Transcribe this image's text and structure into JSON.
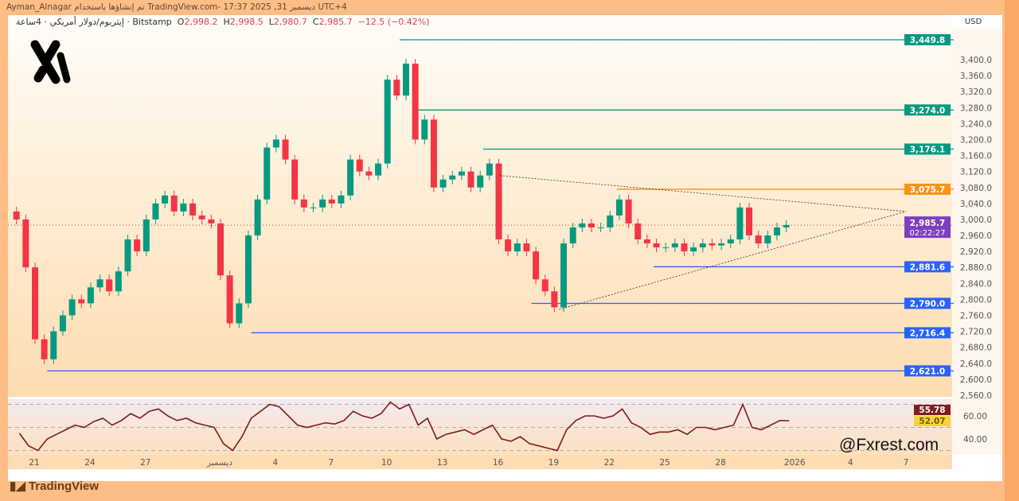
{
  "header": {
    "top_line": "Ayman_Alnagar تم إنشاؤها باستخدام TradingView.com- 17:37 2025 ,31 ديسمبر UTC+4",
    "symbol": "إيثريوم/دولار أمريكي · 4ساعة · Bitstamp",
    "open_label": "O",
    "open": "2,998.2",
    "high_label": "H",
    "high": "2,998.5",
    "low_label": "L",
    "low": "2,980.7",
    "close_label": "C",
    "close": "2,985.7",
    "change": "−12.5 (−0.42%)"
  },
  "currency": "USD",
  "branding": {
    "tradingview": "TradingView",
    "watermark": "@Fxrest.com",
    "logo_icon": "x-logo-icon"
  },
  "colors": {
    "up": "#089981",
    "down": "#f23645",
    "teal_level": "#089981",
    "orange_level": "#f7931a",
    "blue_level": "#2962ff",
    "rsi": "#7f1d1d",
    "last_price": "#7e3fbf"
  },
  "chart_data": [
    {
      "type": "candlestick",
      "timeframe": "4h",
      "price_ticks": [
        "3,400.0",
        "3,360.0",
        "3,320.0",
        "3,280.0",
        "3,240.0",
        "3,200.0",
        "3,160.0",
        "3,120.0",
        "3,080.0",
        "3,040.0",
        "3,000.0",
        "2,960.0",
        "2,920.0",
        "2,880.0",
        "2,840.0",
        "2,800.0",
        "2,760.0",
        "2,720.0",
        "2,680.0",
        "2,640.0",
        "2,600.0",
        "2,560.0"
      ],
      "ylim": [
        2540,
        3470
      ],
      "x_ticks": [
        "21",
        "24",
        "27",
        "ديسمبر",
        "4",
        "7",
        "10",
        "13",
        "16",
        "19",
        "22",
        "25",
        "28",
        "2026",
        "4",
        "7"
      ],
      "x_tick_days": [
        21,
        24,
        27,
        31,
        34,
        37,
        40,
        43,
        46,
        49,
        52,
        55,
        58,
        62,
        65,
        68
      ],
      "closes_per_half_day": [
        3000,
        2880,
        2700,
        2650,
        2720,
        2760,
        2800,
        2790,
        2830,
        2850,
        2820,
        2870,
        2950,
        2920,
        3000,
        3040,
        3060,
        3020,
        3040,
        3010,
        3000,
        2990,
        2860,
        2740,
        2790,
        2960,
        3050,
        3180,
        3200,
        3150,
        3050,
        3030,
        3030,
        3050,
        3040,
        3060,
        3150,
        3120,
        3110,
        3140,
        3350,
        3310,
        3390,
        3200,
        3250,
        3080,
        3100,
        3110,
        3120,
        3080,
        3110,
        3140,
        2950,
        2920,
        2940,
        2920,
        2850,
        2820,
        2780,
        2940,
        2980,
        2990,
        2980,
        2980,
        3010,
        3050,
        2990,
        2950,
        2940,
        2930,
        2930,
        2940,
        2920,
        2930,
        2940,
        2935,
        2940,
        2950,
        3030,
        2960,
        2940,
        2960,
        2980,
        2986
      ],
      "levels": [
        {
          "price": 3449.8,
          "label": "3,449.8",
          "color": "teal",
          "from_day": 40.7
        },
        {
          "price": 3274.0,
          "label": "3,274.0",
          "color": "teal",
          "from_day": 41.7
        },
        {
          "price": 3176.1,
          "label": "3,176.1",
          "color": "teal",
          "from_day": 45.2
        },
        {
          "price": 3075.7,
          "label": "3,075.7",
          "color": "orange",
          "from_day": 52.4
        },
        {
          "price": 2881.6,
          "label": "2,881.6",
          "color": "blue",
          "from_day": 54.4
        },
        {
          "price": 2790.0,
          "label": "2,790.0",
          "color": "blue",
          "from_day": 47.8
        },
        {
          "price": 2716.4,
          "label": "2,716.4",
          "color": "blue",
          "from_day": 32.7
        },
        {
          "price": 2621.0,
          "label": "2,621.0",
          "color": "blue",
          "from_day": 21.7
        }
      ],
      "triangle": {
        "upper": [
          [
            46.1,
            3110
          ],
          [
            68,
            3020
          ]
        ],
        "lower": [
          [
            49.3,
            2775
          ],
          [
            68,
            3020
          ]
        ]
      },
      "last_price": {
        "label": "2,985.7",
        "countdown": "02:22:27"
      }
    },
    {
      "type": "line",
      "name": "RSI",
      "y_ticks": [
        "60.00",
        "40.00"
      ],
      "levels": [
        70,
        50,
        30
      ],
      "ylim": [
        28,
        72
      ],
      "values_per_half_day": [
        45,
        34,
        30,
        40,
        44,
        48,
        52,
        50,
        55,
        58,
        52,
        56,
        62,
        58,
        64,
        66,
        60,
        56,
        58,
        54,
        52,
        50,
        36,
        30,
        42,
        58,
        64,
        70,
        68,
        60,
        52,
        50,
        52,
        54,
        53,
        56,
        64,
        60,
        58,
        62,
        72,
        66,
        70,
        52,
        58,
        40,
        44,
        46,
        48,
        44,
        48,
        52,
        40,
        38,
        42,
        36,
        34,
        32,
        30,
        48,
        56,
        60,
        60,
        58,
        60,
        66,
        54,
        50,
        44,
        46,
        46,
        48,
        44,
        50,
        50,
        48,
        50,
        52,
        70,
        50,
        48,
        52,
        56,
        55.78
      ],
      "value_label": "55.78",
      "ma_label": "52.07"
    }
  ]
}
